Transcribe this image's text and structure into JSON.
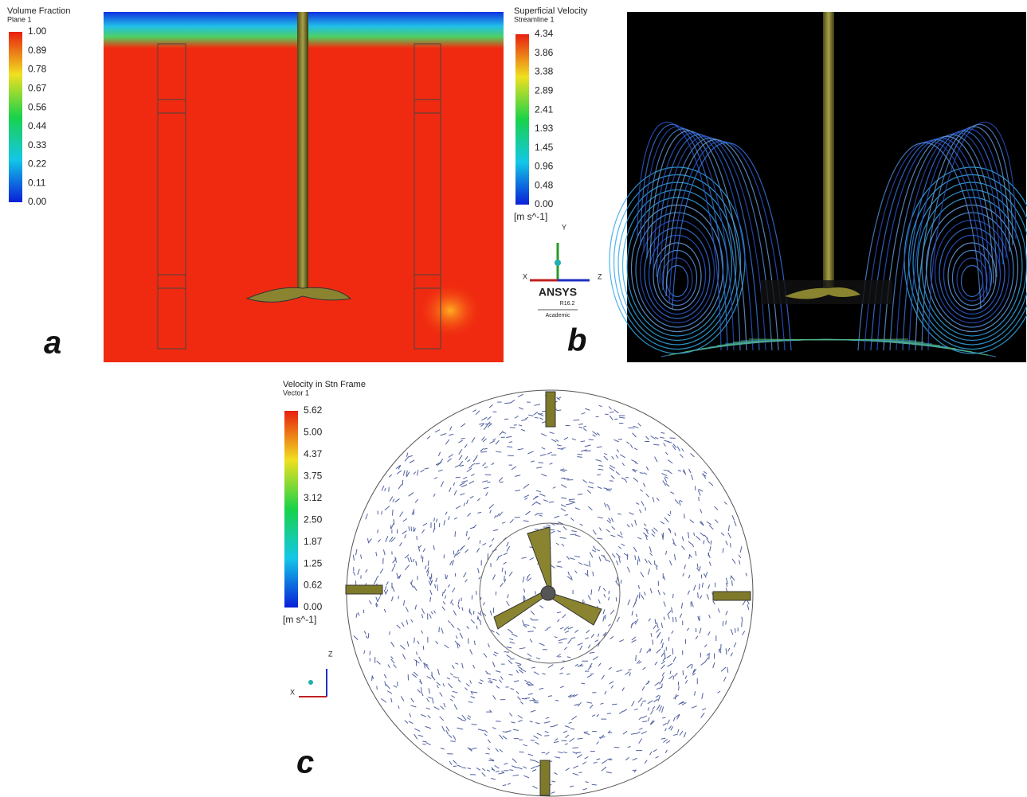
{
  "panel_a": {
    "label": "a",
    "legend": {
      "title": "Volume Fraction",
      "subtitle": "Plane 1",
      "ticks": [
        "1.00",
        "0.89",
        "0.78",
        "0.67",
        "0.56",
        "0.44",
        "0.33",
        "0.22",
        "0.11",
        "0.00"
      ]
    }
  },
  "panel_b": {
    "label": "b",
    "legend": {
      "title": "Superficial Velocity",
      "subtitle": "Streamline 1",
      "ticks": [
        "4.34",
        "3.86",
        "3.38",
        "2.89",
        "2.41",
        "1.93",
        "1.45",
        "0.96",
        "0.48",
        "0.00"
      ],
      "unit": "[m s^-1]"
    },
    "axes": {
      "y": "Y",
      "x": "X",
      "z": "Z"
    },
    "logo": {
      "name": "ANSYS",
      "version": "R16.2",
      "edition": "Academic"
    }
  },
  "panel_c": {
    "label": "c",
    "legend": {
      "title": "Velocity in Stn Frame",
      "subtitle": "Vector 1",
      "ticks": [
        "5.62",
        "5.00",
        "4.37",
        "3.75",
        "3.12",
        "2.50",
        "1.87",
        "1.25",
        "0.62",
        "0.00"
      ],
      "unit": "[m s^-1]"
    },
    "axes": {
      "z": "Z",
      "x": "X"
    }
  }
}
